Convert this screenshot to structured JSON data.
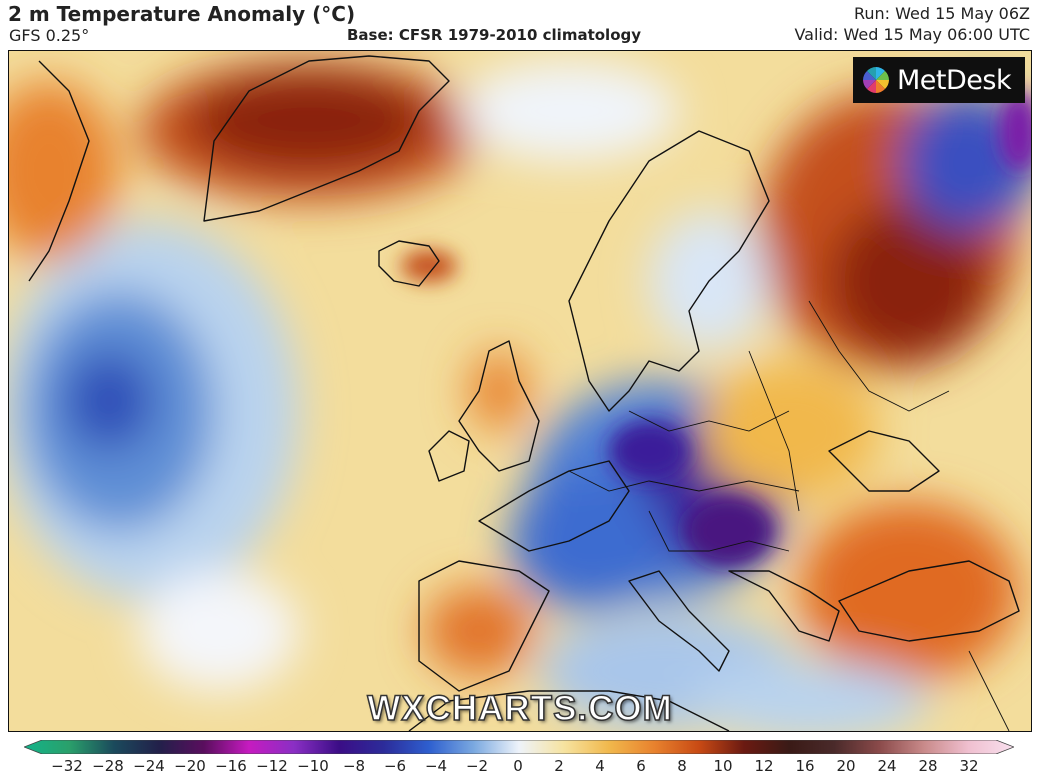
{
  "header": {
    "title": "2 m Temperature Anomaly (°C)",
    "model": "GFS 0.25°",
    "base": "Base: CFSR 1979-2010 climatology",
    "run": "Run: Wed 15 May 06Z",
    "valid": "Valid: Wed 15 May 06:00 UTC"
  },
  "logo": {
    "text": "MetDesk",
    "icon": "pinwheel-icon"
  },
  "watermark": "WXCHARTS.COM",
  "colorbar": {
    "ticks": [
      "−32",
      "−28",
      "−24",
      "−20",
      "−16",
      "−12",
      "−10",
      "−8",
      "−6",
      "−4",
      "−2",
      "0",
      "2",
      "4",
      "6",
      "8",
      "10",
      "12",
      "16",
      "20",
      "24",
      "28",
      "32"
    ],
    "colors": [
      "#13b38a",
      "#2aa06b",
      "#1b4a5c",
      "#22204a",
      "#5a0e5e",
      "#c61bc0",
      "#8a2fc4",
      "#3b0d86",
      "#2c2c9a",
      "#2e5fcf",
      "#7ba9e0",
      "#eef3fa",
      "#f6e3a0",
      "#f1b84c",
      "#e8822e",
      "#c84a14",
      "#6b1a12",
      "#3a1a16",
      "#4a2a2a",
      "#8a4a4a",
      "#c98a8a",
      "#f0c0d0",
      "#f8e0ee"
    ]
  }
}
